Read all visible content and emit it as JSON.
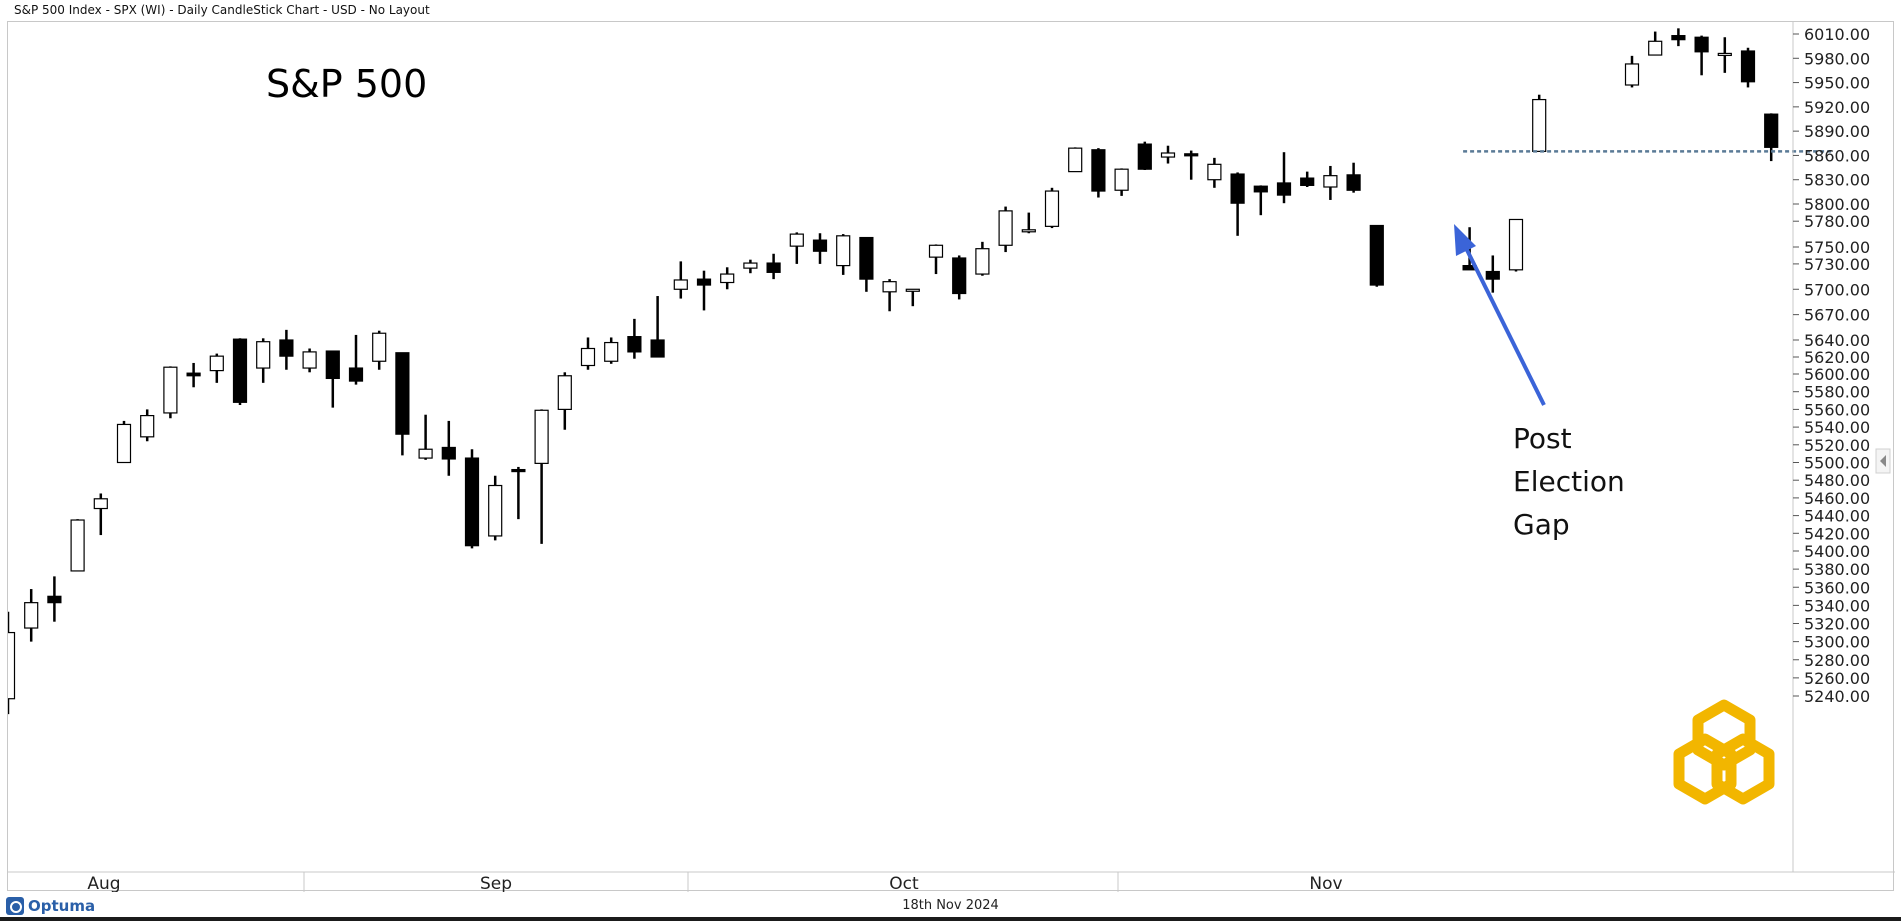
{
  "header": {
    "title": "S&P 500 Index - SPX (WI) - Daily CandleStick Chart - USD - No Layout"
  },
  "footer": {
    "brand": "Optuma",
    "date": "18th Nov 2024"
  },
  "colors": {
    "bull_fill": "#ffffff",
    "bear_fill": "#000000",
    "arrow": "#3b64d8",
    "gap_line": "#5a7a96",
    "logo": "#f2b600"
  },
  "icons": [
    "optuma-logo-icon",
    "watermark-logo-icon",
    "collapse-arrow-icon"
  ],
  "chart_data": {
    "type": "candlestick",
    "title": "S&P 500",
    "ylim": [
      5220,
      6037
    ],
    "y_ticks": [
      5240,
      5260,
      5280,
      5300,
      5320,
      5340,
      5360,
      5380,
      5400,
      5420,
      5440,
      5460,
      5480,
      5500,
      5520,
      5540,
      5560,
      5580,
      5600,
      5620,
      5640,
      5670,
      5700,
      5730,
      5750,
      5780,
      5800,
      5830,
      5860,
      5890,
      5920,
      5950,
      5980,
      6010
    ],
    "y_tick_labels": [
      "5240.00",
      "5260.00",
      "5280.00",
      "5300.00",
      "5320.00",
      "5340.00",
      "5360.00",
      "5380.00",
      "5400.00",
      "5420.00",
      "5440.00",
      "5460.00",
      "5480.00",
      "5500.00",
      "5520.00",
      "5540.00",
      "5560.00",
      "5580.00",
      "5600.00",
      "5620.00",
      "5640.00",
      "5670.00",
      "5700.00",
      "5730.00",
      "5750.00",
      "5780.00",
      "5800.00",
      "5830.00",
      "5860.00",
      "5890.00",
      "5920.00",
      "5950.00",
      "5980.00",
      "6010.00"
    ],
    "months": [
      "Aug",
      "Sep",
      "Oct",
      "Nov"
    ],
    "candles": [
      {
        "date": "2024-08-01",
        "open": 5237,
        "high": 5333,
        "low": 5220,
        "close": 5310
      },
      {
        "date": "2024-08-02",
        "open": 5315,
        "high": 5358,
        "low": 5300,
        "close": 5343
      },
      {
        "date": "2024-08-05",
        "open": 5350,
        "high": 5372,
        "low": 5322,
        "close": 5343
      },
      {
        "date": "2024-08-06",
        "open": 5378,
        "high": 5436,
        "low": 5378,
        "close": 5435
      },
      {
        "date": "2024-08-07",
        "open": 5448,
        "high": 5465,
        "low": 5418,
        "close": 5459
      },
      {
        "date": "2024-08-08",
        "open": 5500,
        "high": 5547,
        "low": 5500,
        "close": 5543
      },
      {
        "date": "2024-08-09",
        "open": 5529,
        "high": 5560,
        "low": 5524,
        "close": 5553
      },
      {
        "date": "2024-08-12",
        "open": 5556,
        "high": 5609,
        "low": 5550,
        "close": 5608
      },
      {
        "date": "2024-08-13",
        "open": 5601,
        "high": 5613,
        "low": 5585,
        "close": 5598
      },
      {
        "date": "2024-08-14",
        "open": 5604,
        "high": 5624,
        "low": 5590,
        "close": 5621
      },
      {
        "date": "2024-08-15",
        "open": 5641,
        "high": 5642,
        "low": 5565,
        "close": 5568
      },
      {
        "date": "2024-08-16",
        "open": 5607,
        "high": 5642,
        "low": 5590,
        "close": 5638
      },
      {
        "date": "2024-08-19",
        "open": 5640,
        "high": 5652,
        "low": 5605,
        "close": 5621
      },
      {
        "date": "2024-08-20",
        "open": 5607,
        "high": 5630,
        "low": 5602,
        "close": 5626
      },
      {
        "date": "2024-08-21",
        "open": 5627,
        "high": 5627,
        "low": 5562,
        "close": 5595
      },
      {
        "date": "2024-08-22",
        "open": 5607,
        "high": 5646,
        "low": 5588,
        "close": 5592
      },
      {
        "date": "2024-08-23",
        "open": 5615,
        "high": 5651,
        "low": 5605,
        "close": 5648
      },
      {
        "date": "2024-08-26",
        "open": 5625,
        "high": 5625,
        "low": 5508,
        "close": 5532
      },
      {
        "date": "2024-08-27",
        "open": 5505,
        "high": 5554,
        "low": 5503,
        "close": 5515
      },
      {
        "date": "2024-08-28",
        "open": 5517,
        "high": 5547,
        "low": 5485,
        "close": 5504
      },
      {
        "date": "2024-08-29",
        "open": 5505,
        "high": 5515,
        "low": 5403,
        "close": 5406
      },
      {
        "date": "2024-08-30",
        "open": 5417,
        "high": 5485,
        "low": 5412,
        "close": 5474
      },
      {
        "date": "2024-09-03",
        "open": 5492,
        "high": 5495,
        "low": 5436,
        "close": 5490
      },
      {
        "date": "2024-09-04",
        "open": 5499,
        "high": 5560,
        "low": 5408,
        "close": 5559
      },
      {
        "date": "2024-09-05",
        "open": 5560,
        "high": 5602,
        "low": 5537,
        "close": 5598
      },
      {
        "date": "2024-09-06",
        "open": 5610,
        "high": 5643,
        "low": 5605,
        "close": 5630
      },
      {
        "date": "2024-09-09",
        "open": 5615,
        "high": 5643,
        "low": 5612,
        "close": 5637
      },
      {
        "date": "2024-09-10",
        "open": 5644,
        "high": 5665,
        "low": 5618,
        "close": 5626
      },
      {
        "date": "2024-09-11",
        "open": 5640,
        "high": 5692,
        "low": 5620,
        "close": 5620
      },
      {
        "date": "2024-09-12",
        "open": 5700,
        "high": 5733,
        "low": 5689,
        "close": 5711
      },
      {
        "date": "2024-09-13",
        "open": 5712,
        "high": 5722,
        "low": 5675,
        "close": 5705
      },
      {
        "date": "2024-09-16",
        "open": 5708,
        "high": 5726,
        "low": 5700,
        "close": 5718
      },
      {
        "date": "2024-09-17",
        "open": 5725,
        "high": 5735,
        "low": 5719,
        "close": 5731
      },
      {
        "date": "2024-09-18",
        "open": 5731,
        "high": 5742,
        "low": 5712,
        "close": 5720
      },
      {
        "date": "2024-09-19",
        "open": 5751,
        "high": 5767,
        "low": 5730,
        "close": 5765
      },
      {
        "date": "2024-09-20",
        "open": 5758,
        "high": 5766,
        "low": 5730,
        "close": 5745
      },
      {
        "date": "2024-09-23",
        "open": 5728,
        "high": 5765,
        "low": 5717,
        "close": 5763
      },
      {
        "date": "2024-09-24",
        "open": 5761,
        "high": 5761,
        "low": 5697,
        "close": 5712
      },
      {
        "date": "2024-09-25",
        "open": 5697,
        "high": 5712,
        "low": 5674,
        "close": 5709
      },
      {
        "date": "2024-09-26",
        "open": 5698,
        "high": 5700,
        "low": 5680,
        "close": 5700
      },
      {
        "date": "2024-09-27",
        "open": 5738,
        "high": 5753,
        "low": 5718,
        "close": 5752
      },
      {
        "date": "2024-09-30",
        "open": 5737,
        "high": 5740,
        "low": 5688,
        "close": 5695
      },
      {
        "date": "2024-10-01",
        "open": 5718,
        "high": 5756,
        "low": 5716,
        "close": 5748
      },
      {
        "date": "2024-10-02",
        "open": 5752,
        "high": 5797,
        "low": 5744,
        "close": 5792
      },
      {
        "date": "2024-10-03",
        "open": 5770,
        "high": 5790,
        "low": 5766,
        "close": 5770
      },
      {
        "date": "2024-10-04",
        "open": 5774,
        "high": 5820,
        "low": 5772,
        "close": 5816
      },
      {
        "date": "2024-10-07",
        "open": 5840,
        "high": 5870,
        "low": 5840,
        "close": 5869
      },
      {
        "date": "2024-10-08",
        "open": 5867,
        "high": 5869,
        "low": 5808,
        "close": 5816
      },
      {
        "date": "2024-10-09",
        "open": 5817,
        "high": 5844,
        "low": 5810,
        "close": 5843
      },
      {
        "date": "2024-10-10",
        "open": 5874,
        "high": 5877,
        "low": 5842,
        "close": 5843
      },
      {
        "date": "2024-10-11",
        "open": 5858,
        "high": 5872,
        "low": 5850,
        "close": 5863
      },
      {
        "date": "2024-10-14",
        "open": 5862,
        "high": 5866,
        "low": 5830,
        "close": 5860
      },
      {
        "date": "2024-10-15",
        "open": 5830,
        "high": 5857,
        "low": 5820,
        "close": 5849
      },
      {
        "date": "2024-10-16",
        "open": 5837,
        "high": 5839,
        "low": 5763,
        "close": 5801
      },
      {
        "date": "2024-10-17",
        "open": 5822,
        "high": 5823,
        "low": 5787,
        "close": 5815
      },
      {
        "date": "2024-10-18",
        "open": 5826,
        "high": 5864,
        "low": 5801,
        "close": 5811
      },
      {
        "date": "2024-10-21",
        "open": 5832,
        "high": 5840,
        "low": 5821,
        "close": 5823
      },
      {
        "date": "2024-10-22",
        "open": 5821,
        "high": 5847,
        "low": 5805,
        "close": 5835
      },
      {
        "date": "2024-10-23",
        "open": 5836,
        "high": 5851,
        "low": 5814,
        "close": 5817
      },
      {
        "date": "2024-10-28",
        "open": 5775,
        "high": 5775,
        "low": 5703,
        "close": 5705
      },
      {
        "date": "2024-10-29",
        "open": 5728,
        "high": 5773,
        "low": 5724,
        "close": 5723
      },
      {
        "date": "2024-10-30",
        "open": 5721,
        "high": 5740,
        "low": 5696,
        "close": 5712
      },
      {
        "date": "2024-10-31",
        "open": 5723,
        "high": 5782,
        "low": 5721,
        "close": 5782
      },
      {
        "date": "2024-11-06",
        "open": 5865,
        "high": 5935,
        "low": 5865,
        "close": 5929
      },
      {
        "date": "2024-11-07",
        "open": 5947,
        "high": 5983,
        "low": 5944,
        "close": 5973
      },
      {
        "date": "2024-11-08",
        "open": 5984,
        "high": 6013,
        "low": 5984,
        "close": 6001
      },
      {
        "date": "2024-11-11",
        "open": 6008,
        "high": 6017,
        "low": 5995,
        "close": 6003
      },
      {
        "date": "2024-11-12",
        "open": 6006,
        "high": 6008,
        "low": 5959,
        "close": 5988
      },
      {
        "date": "2024-11-13",
        "open": 5985,
        "high": 6006,
        "low": 5962,
        "close": 5986
      },
      {
        "date": "2024-11-14",
        "open": 5989,
        "high": 5993,
        "low": 5944,
        "close": 5951
      },
      {
        "date": "2024-11-15",
        "open": 5911,
        "high": 5912,
        "low": 5853,
        "close": 5870
      }
    ],
    "gap_level": 5865,
    "annotation": [
      "Post",
      "Election",
      "Gap"
    ],
    "grid": false
  }
}
